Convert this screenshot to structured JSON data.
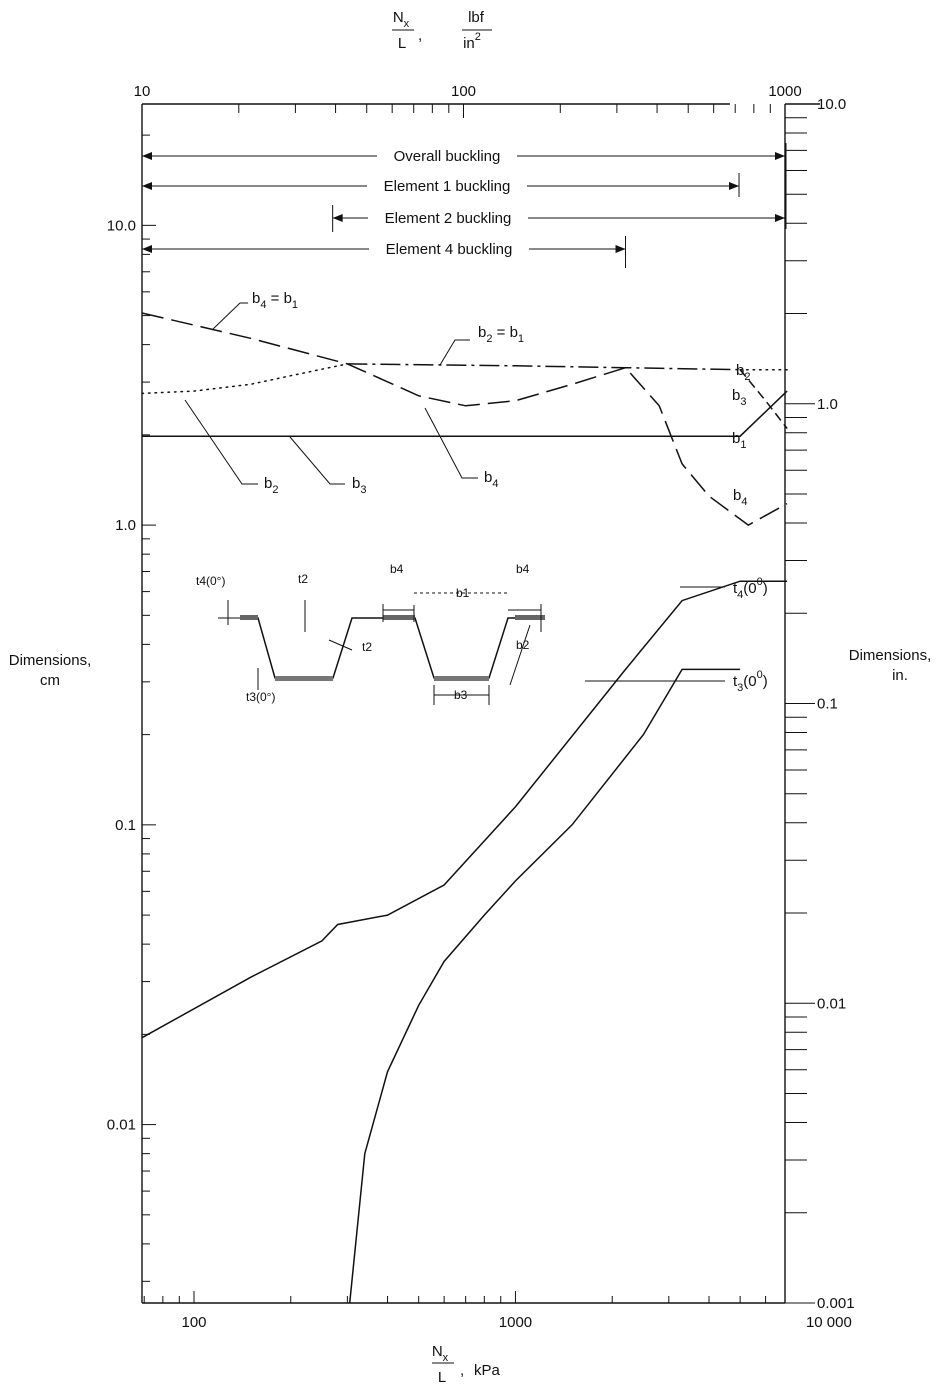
{
  "chart_data": {
    "type": "line",
    "title": "",
    "x_scale": "log",
    "y_scale": "log",
    "bottom_axis": {
      "label_num": "N",
      "label_num_sub": "x",
      "label_den": "L",
      "label_unit": "kPa",
      "range": [
        68.9,
        6895
      ],
      "ticks": [
        100,
        1000,
        10000
      ],
      "tick_labels": [
        "100",
        "1000",
        "10 000"
      ]
    },
    "top_axis": {
      "label_num": "N",
      "label_num_sub": "x",
      "label_den": "L",
      "label_unit_num": "lbf",
      "label_unit_den": "in",
      "label_unit_den_sup": "2",
      "range": [
        10,
        1000
      ],
      "ticks": [
        10,
        100,
        1000
      ],
      "tick_labels": [
        "10",
        "100",
        "1000"
      ]
    },
    "left_axis": {
      "label_line1": "Dimensions,",
      "label_line2": "cm",
      "range": [
        0.00254,
        25.4
      ],
      "ticks": [
        0.01,
        0.1,
        1.0,
        10.0
      ],
      "tick_labels": [
        "0.01",
        "0.1",
        "1.0",
        "10.0"
      ]
    },
    "right_axis": {
      "label_line1": "Dimensions,",
      "label_line2": "in.",
      "range": [
        0.001,
        10.0
      ],
      "ticks": [
        0.001,
        0.01,
        0.1,
        1.0,
        10.0
      ],
      "tick_labels": [
        "0.001",
        "0.01",
        "0.1",
        "1.0",
        "10.0"
      ]
    },
    "ranges": [
      {
        "label": "Overall buckling",
        "from": 68.9,
        "to": 6895,
        "arrow_left": true,
        "arrow_right": true
      },
      {
        "label": "Element 1 buckling",
        "from": 68.9,
        "to": 4960,
        "arrow_left": true,
        "arrow_right": true
      },
      {
        "label": "Element 2 buckling",
        "from": 270,
        "to": 6895,
        "arrow_left": true,
        "arrow_right": true
      },
      {
        "label": "Element 4 buckling",
        "from": 68.9,
        "to": 2200,
        "arrow_left": true,
        "arrow_right": true
      }
    ],
    "series": [
      {
        "name": "b4",
        "style": "long-dash",
        "x": [
          68.9,
          150,
          300,
          500,
          700,
          1000,
          1500,
          2200,
          2800,
          3300,
          4000,
          5300,
          7000
        ],
        "y": [
          5.1,
          4.2,
          3.45,
          2.7,
          2.5,
          2.6,
          2.95,
          3.35,
          2.5,
          1.6,
          1.25,
          1.0,
          1.18
        ]
      },
      {
        "name": "b2",
        "style": "dotted",
        "x": [
          68.9,
          100,
          150,
          200,
          300
        ],
        "y": [
          2.75,
          2.8,
          2.95,
          3.15,
          3.45
        ]
      },
      {
        "name": "b2",
        "style": "dash-dot",
        "x": [
          300,
          1000,
          2200,
          5000
        ],
        "y": [
          3.45,
          3.4,
          3.35,
          3.3
        ]
      },
      {
        "name": "b2",
        "style": "dotted",
        "x": [
          5000,
          7000
        ],
        "y": [
          3.3,
          3.3
        ]
      },
      {
        "name": "b1",
        "style": "short-dash",
        "x": [
          5000,
          6000,
          7000
        ],
        "y": [
          3.3,
          2.6,
          2.1
        ]
      },
      {
        "name": "b3",
        "style": "solid",
        "x": [
          68.9,
          5000,
          7000
        ],
        "y": [
          1.98,
          1.98,
          2.8
        ]
      },
      {
        "name": "t4(0°)",
        "style": "solid",
        "x": [
          68.9,
          150,
          250,
          280,
          400,
          600,
          1000,
          2200,
          3300,
          5000,
          7000
        ],
        "y": [
          0.0195,
          0.031,
          0.041,
          0.0465,
          0.05,
          0.063,
          0.115,
          0.33,
          0.56,
          0.65,
          0.65
        ]
      },
      {
        "name": "t3(0°)",
        "style": "solid",
        "x": [
          305,
          340,
          400,
          500,
          600,
          800,
          1000,
          1500,
          2500,
          3300,
          5000
        ],
        "y": [
          0.00254,
          0.008,
          0.015,
          0.025,
          0.035,
          0.05,
          0.065,
          0.1,
          0.2,
          0.33,
          0.33
        ]
      }
    ],
    "annotations": [
      {
        "text": "b",
        "sub": "4",
        "suffix": " = b",
        "suffix_sub": "1"
      },
      {
        "text": "b",
        "sub": "2",
        "suffix": " = b",
        "suffix_sub": "1"
      },
      {
        "text": "b",
        "sub": "2"
      },
      {
        "text": "b",
        "sub": "3"
      },
      {
        "text": "b",
        "sub": "4"
      },
      {
        "text": "b",
        "sub": "2"
      },
      {
        "text": "b",
        "sub": "3"
      },
      {
        "text": "b",
        "sub": "1"
      },
      {
        "text": "b",
        "sub": "4"
      },
      {
        "text": "t",
        "sub": "4",
        "suffix": "(0",
        "sup": "0",
        "tail": ")"
      },
      {
        "text": "t",
        "sub": "3",
        "suffix": "(0",
        "sup": "0",
        "tail": ")"
      }
    ],
    "inset": {
      "labels": {
        "t4": "t4(0°)",
        "t2a": "t2",
        "t2b": "t2",
        "t3": "t3(0°)",
        "b4a": "b4",
        "b1": "b1",
        "b4b": "b4",
        "b2": "b2",
        "b3": "b3"
      }
    },
    "grid": false,
    "legend": "none"
  }
}
